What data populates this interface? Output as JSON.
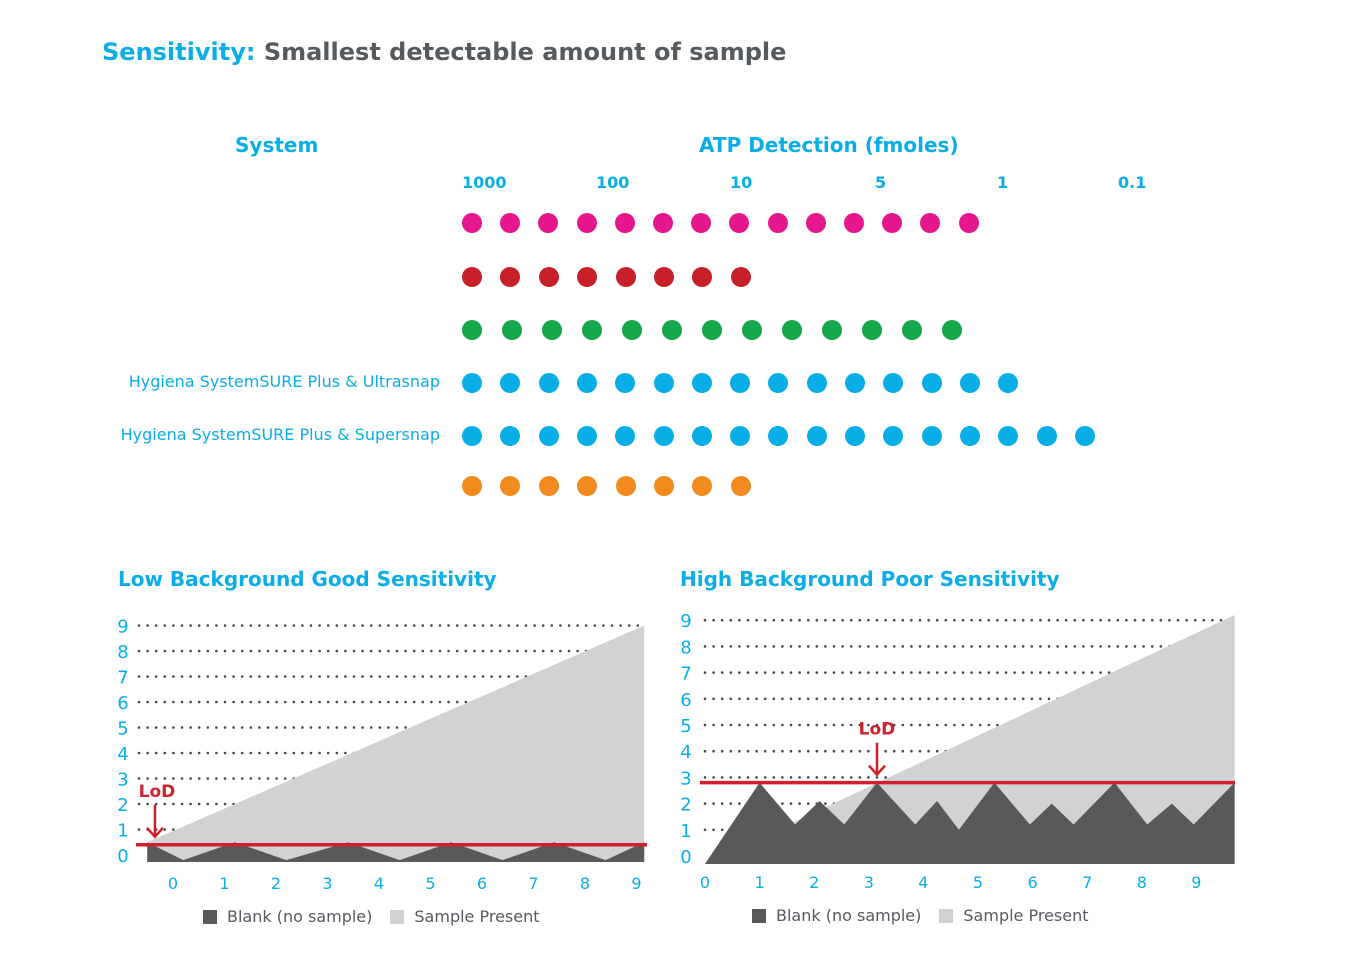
{
  "header": {
    "title_highlight": "Sensitivity:",
    "title_rest": "Smallest detectable amount of sample"
  },
  "colors": {
    "accent_blue": "#0aaee6",
    "dark_gray": "#555a5f",
    "lod_red": "#d0202e",
    "blank_fill": "#58595b",
    "sample_fill": "#d1d2d4"
  },
  "chart_data": [
    {
      "type": "scatter",
      "title": "",
      "column_headers": {
        "system": "System",
        "detection": "ATP Detection (fmoles)"
      },
      "x_tick_labels": [
        "1000",
        "100",
        "10",
        "5",
        "1",
        "0.1"
      ],
      "series": [
        {
          "name": "",
          "color": "#e6168c",
          "dot_count": 14
        },
        {
          "name": "",
          "color": "#c8202a",
          "dot_count": 8
        },
        {
          "name": "",
          "color": "#14a84a",
          "dot_count": 13
        },
        {
          "name": "Hygiena SystemSURE Plus & Ultrasnap",
          "color": "#0aaee6",
          "dot_count": 15
        },
        {
          "name": "Hygiena SystemSURE Plus & Supersnap",
          "color": "#0aaee6",
          "dot_count": 17
        },
        {
          "name": "",
          "color": "#f28a1e",
          "dot_count": 8
        }
      ]
    },
    {
      "type": "area",
      "title": "Low Background Good Sensitivity",
      "x": [
        0,
        1,
        2,
        3,
        4,
        5,
        6,
        7,
        8,
        9
      ],
      "y_ticks": [
        0,
        1,
        2,
        3,
        4,
        5,
        6,
        7,
        8,
        9
      ],
      "xlim": [
        -0.5,
        9.15
      ],
      "ylim": [
        0,
        9
      ],
      "grid": "dotted",
      "lod": {
        "label": "LoD",
        "value": 0.4,
        "x": -0.35
      },
      "series": [
        {
          "name": "Blank (no sample)",
          "points": [
            [
              -0.5,
              0.5
            ],
            [
              0.2,
              -0.2
            ],
            [
              1.2,
              0.5
            ],
            [
              2.2,
              -0.2
            ],
            [
              3.4,
              0.5
            ],
            [
              4.4,
              -0.2
            ],
            [
              5.4,
              0.5
            ],
            [
              6.4,
              -0.2
            ],
            [
              7.4,
              0.5
            ],
            [
              8.4,
              -0.2
            ],
            [
              9.15,
              0.5
            ]
          ]
        },
        {
          "name": "Sample Present",
          "points": [
            [
              -0.5,
              0.5
            ],
            [
              9.15,
              9
            ]
          ]
        }
      ],
      "legend": [
        "Blank (no sample)",
        "Sample Present"
      ]
    },
    {
      "type": "area",
      "title": "High Background Poor Sensitivity",
      "x": [
        0,
        1,
        2,
        3,
        4,
        5,
        6,
        7,
        8,
        9
      ],
      "y_ticks": [
        0,
        1,
        2,
        3,
        4,
        5,
        6,
        7,
        8,
        9
      ],
      "xlim": [
        0,
        9.7
      ],
      "ylim": [
        0,
        9
      ],
      "grid": "dotted",
      "lod": {
        "label": "LoD",
        "value": 2.8,
        "x": 3.15
      },
      "series": [
        {
          "name": "Blank (no sample)",
          "points": [
            [
              0,
              -0.3
            ],
            [
              1,
              2.8
            ],
            [
              1.65,
              1.2
            ],
            [
              2.1,
              2.1
            ],
            [
              2.55,
              1.2
            ],
            [
              3.15,
              2.8
            ],
            [
              3.85,
              1.2
            ],
            [
              4.25,
              2.1
            ],
            [
              4.65,
              1.0
            ],
            [
              5.3,
              2.8
            ],
            [
              5.95,
              1.2
            ],
            [
              6.35,
              2.0
            ],
            [
              6.75,
              1.2
            ],
            [
              7.5,
              2.8
            ],
            [
              8.1,
              1.2
            ],
            [
              8.55,
              2.0
            ],
            [
              8.95,
              1.2
            ],
            [
              9.7,
              2.8
            ]
          ]
        },
        {
          "name": "Sample Present",
          "points": [
            [
              0,
              -0.3
            ],
            [
              9.7,
              9.2
            ]
          ]
        }
      ],
      "legend": [
        "Blank (no sample)",
        "Sample Present"
      ]
    }
  ]
}
